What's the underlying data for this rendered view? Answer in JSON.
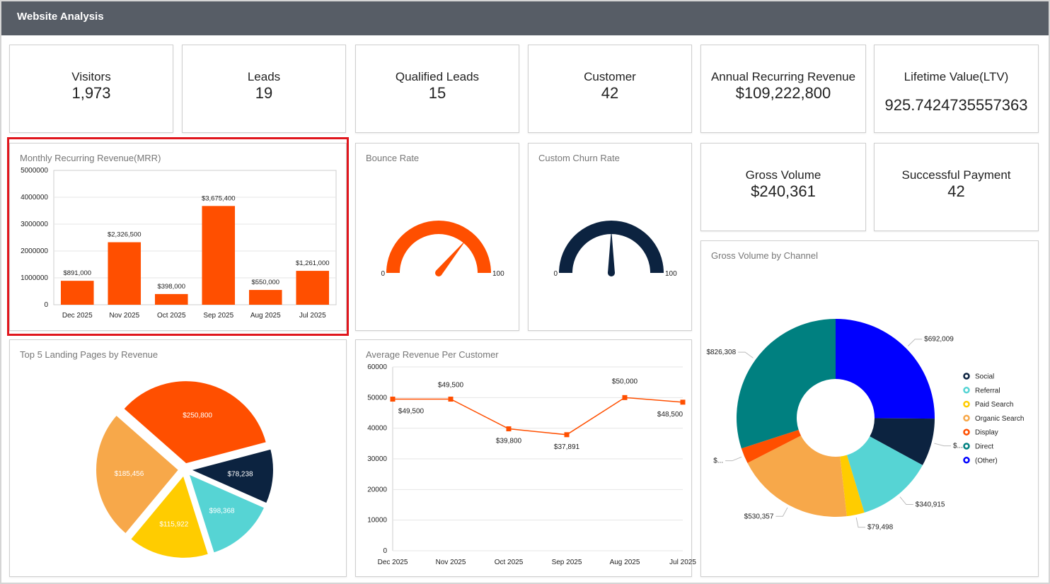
{
  "header": {
    "title": "Website Analysis"
  },
  "kpis": {
    "visitors": {
      "label": "Visitors",
      "value": "1,973"
    },
    "leads": {
      "label": "Leads",
      "value": "19"
    },
    "qualified_leads": {
      "label": "Qualified Leads",
      "value": "15"
    },
    "customer": {
      "label": "Customer",
      "value": "42"
    },
    "arr": {
      "label": "Annual Recurring Revenue",
      "value": "$109,222,800"
    },
    "ltv": {
      "label": "Lifetime Value(LTV)",
      "value": "925.7424735557363"
    },
    "gross_volume": {
      "label": "Gross Volume",
      "value": "$240,361"
    },
    "successful_payment": {
      "label": "Successful Payment",
      "value": "42"
    }
  },
  "panels": {
    "mrr": "Monthly Recurring Revenue(MRR)",
    "bounce": "Bounce Rate",
    "churn": "Custom Churn Rate",
    "landing": "Top 5 Landing Pages by Revenue",
    "arpc": "Average Revenue Per Customer",
    "channel": "Gross Volume by Channel"
  },
  "colors": {
    "orange": "#ff4f00",
    "navy": "#0c2340",
    "teal": "#008080",
    "blue": "#0000ff",
    "cyan": "#56d4d4",
    "gold": "#ffcc00",
    "light_orange": "#f7a84a"
  },
  "chart_data": [
    {
      "type": "bar",
      "title": "Monthly Recurring Revenue(MRR)",
      "categories": [
        "Dec 2025",
        "Nov 2025",
        "Oct 2025",
        "Sep 2025",
        "Aug 2025",
        "Jul 2025"
      ],
      "values": [
        891000,
        2326500,
        398000,
        3675400,
        550000,
        1261000
      ],
      "data_labels": [
        "$891,000",
        "$2,326,500",
        "$398,000",
        "$3,675,400",
        "$550,000",
        "$1,261,000"
      ],
      "ylim": [
        0,
        5000000
      ],
      "yticks": [
        "5000000",
        "4000000",
        "3000000",
        "2000000",
        "1000000",
        "0"
      ],
      "color": "#ff4f00"
    },
    {
      "type": "gauge",
      "title": "Bounce Rate",
      "min_label": "0",
      "max_label": "100",
      "min": 0,
      "max": 100,
      "value": 72,
      "color": "#ff4f00"
    },
    {
      "type": "gauge",
      "title": "Custom Churn Rate",
      "min_label": "0",
      "max_label": "100",
      "min": 0,
      "max": 100,
      "value": 50,
      "color": "#0c2340"
    },
    {
      "type": "pie",
      "title": "Top 5 Landing Pages by Revenue",
      "labels": [
        "$250,800",
        "$78,238",
        "$98,368",
        "$115,922",
        "$185,456"
      ],
      "values": [
        250800,
        78238,
        98368,
        115922,
        185456
      ],
      "colors": [
        "#ff4f00",
        "#0c2340",
        "#56d4d4",
        "#ffcc00",
        "#f7a84a"
      ]
    },
    {
      "type": "line",
      "title": "Average Revenue Per Customer",
      "categories": [
        "Dec 2025",
        "Nov 2025",
        "Oct 2025",
        "Sep 2025",
        "Aug 2025",
        "Jul 2025"
      ],
      "values": [
        49500,
        49500,
        39800,
        37891,
        50000,
        48500
      ],
      "data_labels": [
        "$49,500",
        "$49,500",
        "$39,800",
        "$37,891",
        "$50,000",
        "$48,500"
      ],
      "ylim": [
        0,
        60000
      ],
      "yticks": [
        "60000",
        "50000",
        "40000",
        "30000",
        "20000",
        "10000",
        "0"
      ],
      "color": "#ff4f00"
    },
    {
      "type": "donut",
      "title": "Gross Volume by Channel",
      "slices": [
        {
          "legend": "(Other)",
          "label": "$692,009",
          "value": 692009,
          "color": "#0000ff"
        },
        {
          "legend": "Social",
          "label": "$...",
          "value": 215000,
          "color": "#0c2340"
        },
        {
          "legend": "Referral",
          "label": "$340,915",
          "value": 340915,
          "color": "#56d4d4"
        },
        {
          "legend": "Paid Search",
          "label": "$79,498",
          "value": 79498,
          "color": "#ffcc00"
        },
        {
          "legend": "Organic Search",
          "label": "$530,357",
          "value": 530357,
          "color": "#f7a84a"
        },
        {
          "legend": "Display",
          "label": "$...",
          "value": 70000,
          "color": "#ff4f00"
        },
        {
          "legend": "Direct",
          "label": "$826,308",
          "value": 826308,
          "color": "#008080"
        }
      ],
      "legend_order": [
        "Social",
        "Referral",
        "Paid Search",
        "Organic Search",
        "Display",
        "Direct",
        "(Other)"
      ]
    }
  ]
}
